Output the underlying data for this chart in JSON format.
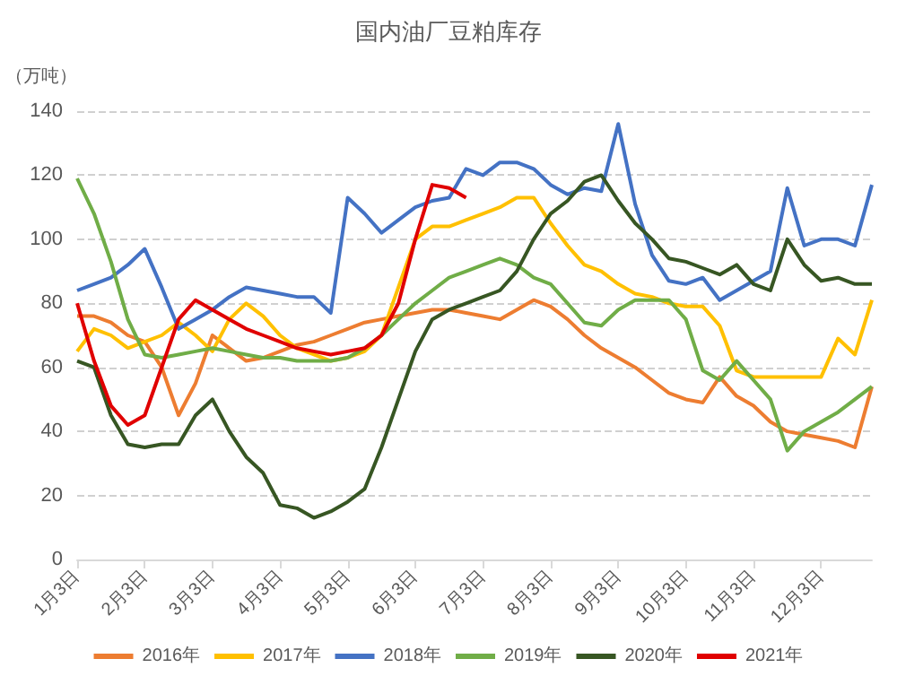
{
  "chart_data": {
    "type": "line",
    "title": "国内油厂豆粕库存",
    "ylabel": "（万吨）",
    "categories": [
      "1月3日",
      null,
      null,
      null,
      "2月3日",
      null,
      null,
      null,
      "3月3日",
      null,
      null,
      null,
      "4月3日",
      null,
      null,
      null,
      "5月3日",
      null,
      null,
      null,
      "6月3日",
      null,
      null,
      null,
      "7月3日",
      null,
      null,
      null,
      "8月3日",
      null,
      null,
      null,
      "9月3日",
      null,
      null,
      null,
      "10月3日",
      null,
      null,
      null,
      "11月3日",
      null,
      null,
      null,
      "12月3日",
      null,
      null,
      null
    ],
    "series": [
      {
        "name": "2016年",
        "color": "#ed7d31",
        "values": [
          76,
          76,
          74,
          70,
          68,
          60,
          45,
          55,
          70,
          66,
          62,
          63,
          65,
          67,
          68,
          70,
          72,
          74,
          75,
          76,
          77,
          78,
          78,
          77,
          76,
          75,
          78,
          81,
          79,
          75,
          70,
          66,
          63,
          60,
          56,
          52,
          50,
          49,
          57,
          51,
          48,
          43,
          40,
          39,
          38,
          37,
          35,
          54
        ]
      },
      {
        "name": "2017年",
        "color": "#ffc000",
        "values": [
          65,
          72,
          70,
          66,
          68,
          70,
          74,
          70,
          65,
          75,
          80,
          76,
          70,
          66,
          64,
          62,
          63,
          65,
          70,
          85,
          100,
          104,
          104,
          106,
          108,
          110,
          113,
          113,
          105,
          98,
          92,
          90,
          86,
          83,
          82,
          80,
          79,
          79,
          73,
          59,
          57,
          57,
          57,
          57,
          57,
          69,
          64,
          81
        ]
      },
      {
        "name": "2018年",
        "color": "#4472c4",
        "values": [
          84,
          86,
          88,
          92,
          97,
          85,
          72,
          75,
          78,
          82,
          85,
          84,
          83,
          82,
          82,
          77,
          113,
          108,
          102,
          106,
          110,
          112,
          113,
          122,
          120,
          124,
          124,
          122,
          117,
          114,
          116,
          115,
          136,
          111,
          95,
          87,
          86,
          88,
          81,
          84,
          87,
          90,
          116,
          98,
          100,
          100,
          98,
          117
        ]
      },
      {
        "name": "2019年",
        "color": "#70ad47",
        "values": [
          119,
          108,
          93,
          75,
          64,
          63,
          64,
          65,
          66,
          65,
          64,
          63,
          63,
          62,
          62,
          62,
          63,
          66,
          70,
          75,
          80,
          84,
          88,
          90,
          92,
          94,
          92,
          88,
          86,
          80,
          74,
          73,
          78,
          81,
          81,
          81,
          75,
          59,
          56,
          62,
          56,
          50,
          34,
          40,
          43,
          46,
          50,
          54
        ]
      },
      {
        "name": "2020年",
        "color": "#375623",
        "values": [
          62,
          60,
          45,
          36,
          35,
          36,
          36,
          45,
          50,
          40,
          32,
          27,
          17,
          16,
          13,
          15,
          18,
          22,
          35,
          50,
          65,
          75,
          78,
          80,
          82,
          84,
          90,
          100,
          108,
          112,
          118,
          120,
          112,
          105,
          100,
          94,
          93,
          91,
          89,
          92,
          86,
          84,
          100,
          92,
          87,
          88,
          86,
          86
        ]
      },
      {
        "name": "2021年",
        "color": "#e00000",
        "values": [
          80,
          62,
          48,
          42,
          45,
          60,
          75,
          81,
          78,
          75,
          72,
          70,
          68,
          66,
          65,
          64,
          65,
          66,
          70,
          80,
          100,
          117,
          116,
          113,
          null,
          null,
          null,
          null,
          null,
          null,
          null,
          null,
          null,
          null,
          null,
          null,
          null,
          null,
          null,
          null,
          null,
          null,
          null,
          null,
          null,
          null,
          null,
          null
        ]
      }
    ],
    "ylim": [
      0,
      140
    ],
    "yticks": [
      0,
      20,
      40,
      60,
      80,
      100,
      120,
      140
    ],
    "grid": "y",
    "legend": "bottom",
    "marker": "none",
    "line_style": "solid"
  }
}
